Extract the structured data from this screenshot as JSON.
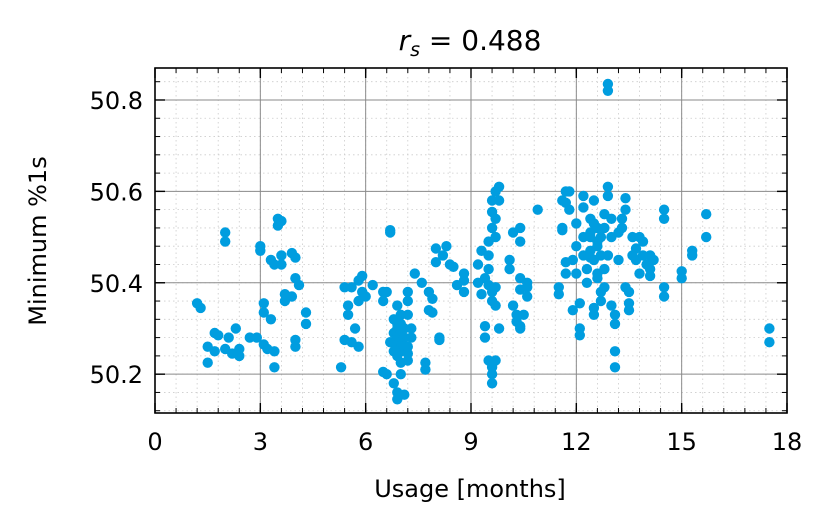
{
  "chart_data": {
    "type": "scatter",
    "title_var": "r",
    "title_sub": "s",
    "title_rest": " = 0.488",
    "xlabel": "Usage [months]",
    "ylabel": "Minimum %1s",
    "xlim": [
      0,
      18
    ],
    "ylim": [
      50.115,
      50.87
    ],
    "xticks": [
      0,
      3,
      6,
      9,
      12,
      15,
      18
    ],
    "yticks": [
      50.2,
      50.4,
      50.6,
      50.8
    ],
    "ytick_labels": [
      "50.2",
      "50.4",
      "50.6",
      "50.8"
    ],
    "grid": true,
    "minor_grid": true,
    "point_color": "#009ddf",
    "points": [
      [
        1.2,
        50.355
      ],
      [
        1.3,
        50.345
      ],
      [
        1.5,
        50.26
      ],
      [
        1.5,
        50.225
      ],
      [
        1.7,
        50.29
      ],
      [
        1.7,
        50.25
      ],
      [
        1.8,
        50.285
      ],
      [
        2.0,
        50.51
      ],
      [
        2.0,
        50.49
      ],
      [
        2.0,
        50.255
      ],
      [
        2.1,
        50.28
      ],
      [
        2.2,
        50.245
      ],
      [
        2.3,
        50.3
      ],
      [
        2.4,
        50.255
      ],
      [
        2.4,
        50.24
      ],
      [
        2.7,
        50.28
      ],
      [
        2.9,
        50.28
      ],
      [
        3.0,
        50.48
      ],
      [
        3.0,
        50.47
      ],
      [
        3.1,
        50.355
      ],
      [
        3.1,
        50.335
      ],
      [
        3.1,
        50.265
      ],
      [
        3.2,
        50.255
      ],
      [
        3.3,
        50.45
      ],
      [
        3.3,
        50.32
      ],
      [
        3.4,
        50.44
      ],
      [
        3.4,
        50.25
      ],
      [
        3.4,
        50.215
      ],
      [
        3.5,
        50.54
      ],
      [
        3.5,
        50.525
      ],
      [
        3.6,
        50.46
      ],
      [
        3.6,
        50.44
      ],
      [
        3.6,
        50.535
      ],
      [
        3.7,
        50.375
      ],
      [
        3.7,
        50.36
      ],
      [
        3.9,
        50.465
      ],
      [
        3.9,
        50.37
      ],
      [
        4.0,
        50.455
      ],
      [
        4.0,
        50.41
      ],
      [
        4.0,
        50.275
      ],
      [
        4.0,
        50.26
      ],
      [
        4.1,
        50.395
      ],
      [
        4.3,
        50.335
      ],
      [
        4.3,
        50.31
      ],
      [
        5.3,
        50.215
      ],
      [
        5.4,
        50.39
      ],
      [
        5.4,
        50.275
      ],
      [
        5.5,
        50.35
      ],
      [
        5.5,
        50.33
      ],
      [
        5.6,
        50.39
      ],
      [
        5.6,
        50.27
      ],
      [
        5.7,
        50.3
      ],
      [
        5.8,
        50.405
      ],
      [
        5.8,
        50.36
      ],
      [
        5.8,
        50.26
      ],
      [
        5.9,
        50.415
      ],
      [
        5.9,
        50.38
      ],
      [
        6.0,
        50.37
      ],
      [
        6.2,
        50.395
      ],
      [
        6.5,
        50.38
      ],
      [
        6.5,
        50.36
      ],
      [
        6.5,
        50.205
      ],
      [
        6.6,
        50.38
      ],
      [
        6.6,
        50.2
      ],
      [
        6.7,
        50.515
      ],
      [
        6.7,
        50.51
      ],
      [
        6.7,
        50.27
      ],
      [
        6.8,
        50.32
      ],
      [
        6.8,
        50.29
      ],
      [
        6.8,
        50.25
      ],
      [
        6.8,
        50.18
      ],
      [
        6.9,
        50.35
      ],
      [
        6.9,
        50.31
      ],
      [
        6.9,
        50.3
      ],
      [
        6.9,
        50.28
      ],
      [
        6.9,
        50.265
      ],
      [
        6.9,
        50.24
      ],
      [
        6.9,
        50.16
      ],
      [
        6.9,
        50.145
      ],
      [
        7.0,
        50.33
      ],
      [
        7.0,
        50.31
      ],
      [
        7.0,
        50.29
      ],
      [
        7.0,
        50.27
      ],
      [
        7.0,
        50.25
      ],
      [
        7.0,
        50.225
      ],
      [
        7.0,
        50.2
      ],
      [
        7.1,
        50.3
      ],
      [
        7.1,
        50.28
      ],
      [
        7.1,
        50.26
      ],
      [
        7.1,
        50.155
      ],
      [
        7.2,
        50.38
      ],
      [
        7.2,
        50.36
      ],
      [
        7.2,
        50.33
      ],
      [
        7.2,
        50.26
      ],
      [
        7.2,
        50.245
      ],
      [
        7.2,
        50.23
      ],
      [
        7.3,
        50.3
      ],
      [
        7.3,
        50.28
      ],
      [
        7.4,
        50.42
      ],
      [
        7.6,
        50.4
      ],
      [
        7.7,
        50.225
      ],
      [
        7.7,
        50.21
      ],
      [
        7.8,
        50.38
      ],
      [
        7.8,
        50.34
      ],
      [
        7.9,
        50.365
      ],
      [
        7.9,
        50.335
      ],
      [
        8.0,
        50.475
      ],
      [
        8.0,
        50.445
      ],
      [
        8.1,
        50.275
      ],
      [
        8.1,
        50.28
      ],
      [
        8.2,
        50.46
      ],
      [
        8.3,
        50.48
      ],
      [
        8.4,
        50.44
      ],
      [
        8.5,
        50.435
      ],
      [
        8.6,
        50.395
      ],
      [
        8.8,
        50.42
      ],
      [
        8.8,
        50.405
      ],
      [
        8.8,
        50.38
      ],
      [
        9.2,
        50.44
      ],
      [
        9.2,
        50.4
      ],
      [
        9.3,
        50.375
      ],
      [
        9.3,
        50.47
      ],
      [
        9.4,
        50.41
      ],
      [
        9.4,
        50.305
      ],
      [
        9.4,
        50.28
      ],
      [
        9.5,
        50.49
      ],
      [
        9.5,
        50.46
      ],
      [
        9.5,
        50.43
      ],
      [
        9.5,
        50.395
      ],
      [
        9.5,
        50.23
      ],
      [
        9.6,
        50.58
      ],
      [
        9.6,
        50.555
      ],
      [
        9.6,
        50.52
      ],
      [
        9.6,
        50.38
      ],
      [
        9.6,
        50.36
      ],
      [
        9.6,
        50.215
      ],
      [
        9.6,
        50.2
      ],
      [
        9.6,
        50.18
      ],
      [
        9.7,
        50.6
      ],
      [
        9.7,
        50.54
      ],
      [
        9.7,
        50.5
      ],
      [
        9.7,
        50.39
      ],
      [
        9.7,
        50.35
      ],
      [
        9.7,
        50.23
      ],
      [
        9.8,
        50.61
      ],
      [
        9.8,
        50.58
      ],
      [
        9.8,
        50.3
      ],
      [
        10.1,
        50.45
      ],
      [
        10.1,
        50.43
      ],
      [
        10.2,
        50.51
      ],
      [
        10.2,
        50.35
      ],
      [
        10.3,
        50.33
      ],
      [
        10.3,
        50.315
      ],
      [
        10.4,
        50.52
      ],
      [
        10.4,
        50.49
      ],
      [
        10.4,
        50.41
      ],
      [
        10.4,
        50.385
      ],
      [
        10.4,
        50.305
      ],
      [
        10.4,
        50.3
      ],
      [
        10.5,
        50.33
      ],
      [
        10.6,
        50.4
      ],
      [
        10.6,
        50.39
      ],
      [
        10.6,
        50.37
      ],
      [
        10.9,
        50.56
      ],
      [
        11.5,
        50.39
      ],
      [
        11.5,
        50.375
      ],
      [
        11.6,
        50.58
      ],
      [
        11.6,
        50.52
      ],
      [
        11.6,
        50.515
      ],
      [
        11.7,
        50.6
      ],
      [
        11.7,
        50.575
      ],
      [
        11.7,
        50.445
      ],
      [
        11.7,
        50.42
      ],
      [
        11.8,
        50.6
      ],
      [
        11.8,
        50.56
      ],
      [
        11.9,
        50.45
      ],
      [
        11.9,
        50.34
      ],
      [
        12.0,
        50.53
      ],
      [
        12.0,
        50.48
      ],
      [
        12.0,
        50.42
      ],
      [
        12.1,
        50.355
      ],
      [
        12.1,
        50.3
      ],
      [
        12.1,
        50.285
      ],
      [
        12.2,
        50.59
      ],
      [
        12.2,
        50.565
      ],
      [
        12.2,
        50.5
      ],
      [
        12.2,
        50.46
      ],
      [
        12.3,
        50.43
      ],
      [
        12.3,
        50.4
      ],
      [
        12.4,
        50.54
      ],
      [
        12.4,
        50.51
      ],
      [
        12.4,
        50.5
      ],
      [
        12.4,
        50.47
      ],
      [
        12.4,
        50.455
      ],
      [
        12.5,
        50.58
      ],
      [
        12.5,
        50.53
      ],
      [
        12.5,
        50.45
      ],
      [
        12.5,
        50.345
      ],
      [
        12.5,
        50.33
      ],
      [
        12.6,
        50.52
      ],
      [
        12.6,
        50.49
      ],
      [
        12.6,
        50.48
      ],
      [
        12.6,
        50.42
      ],
      [
        12.6,
        50.41
      ],
      [
        12.7,
        50.5
      ],
      [
        12.7,
        50.46
      ],
      [
        12.7,
        50.38
      ],
      [
        12.7,
        50.36
      ],
      [
        12.8,
        50.55
      ],
      [
        12.8,
        50.52
      ],
      [
        12.8,
        50.43
      ],
      [
        12.8,
        50.39
      ],
      [
        12.9,
        50.61
      ],
      [
        12.9,
        50.59
      ],
      [
        12.9,
        50.835
      ],
      [
        12.9,
        50.82
      ],
      [
        12.9,
        50.46
      ],
      [
        13.0,
        50.54
      ],
      [
        13.0,
        50.5
      ],
      [
        13.0,
        50.35
      ],
      [
        13.1,
        50.33
      ],
      [
        13.1,
        50.31
      ],
      [
        13.1,
        50.25
      ],
      [
        13.1,
        50.215
      ],
      [
        13.2,
        50.51
      ],
      [
        13.2,
        50.45
      ],
      [
        13.3,
        50.54
      ],
      [
        13.3,
        50.52
      ],
      [
        13.4,
        50.585
      ],
      [
        13.4,
        50.56
      ],
      [
        13.4,
        50.39
      ],
      [
        13.5,
        50.38
      ],
      [
        13.5,
        50.355
      ],
      [
        13.5,
        50.34
      ],
      [
        13.6,
        50.5
      ],
      [
        13.6,
        50.46
      ],
      [
        13.7,
        50.475
      ],
      [
        13.7,
        50.45
      ],
      [
        13.8,
        50.5
      ],
      [
        13.8,
        50.42
      ],
      [
        13.9,
        50.49
      ],
      [
        13.9,
        50.46
      ],
      [
        14.0,
        50.44
      ],
      [
        14.1,
        50.46
      ],
      [
        14.1,
        50.43
      ],
      [
        14.1,
        50.415
      ],
      [
        14.2,
        50.45
      ],
      [
        14.5,
        50.56
      ],
      [
        14.5,
        50.54
      ],
      [
        14.5,
        50.39
      ],
      [
        14.5,
        50.37
      ],
      [
        15.0,
        50.425
      ],
      [
        15.0,
        50.41
      ],
      [
        15.3,
        50.47
      ],
      [
        15.3,
        50.46
      ],
      [
        15.7,
        50.55
      ],
      [
        15.7,
        50.5
      ],
      [
        17.5,
        50.3
      ],
      [
        17.5,
        50.27
      ]
    ]
  }
}
